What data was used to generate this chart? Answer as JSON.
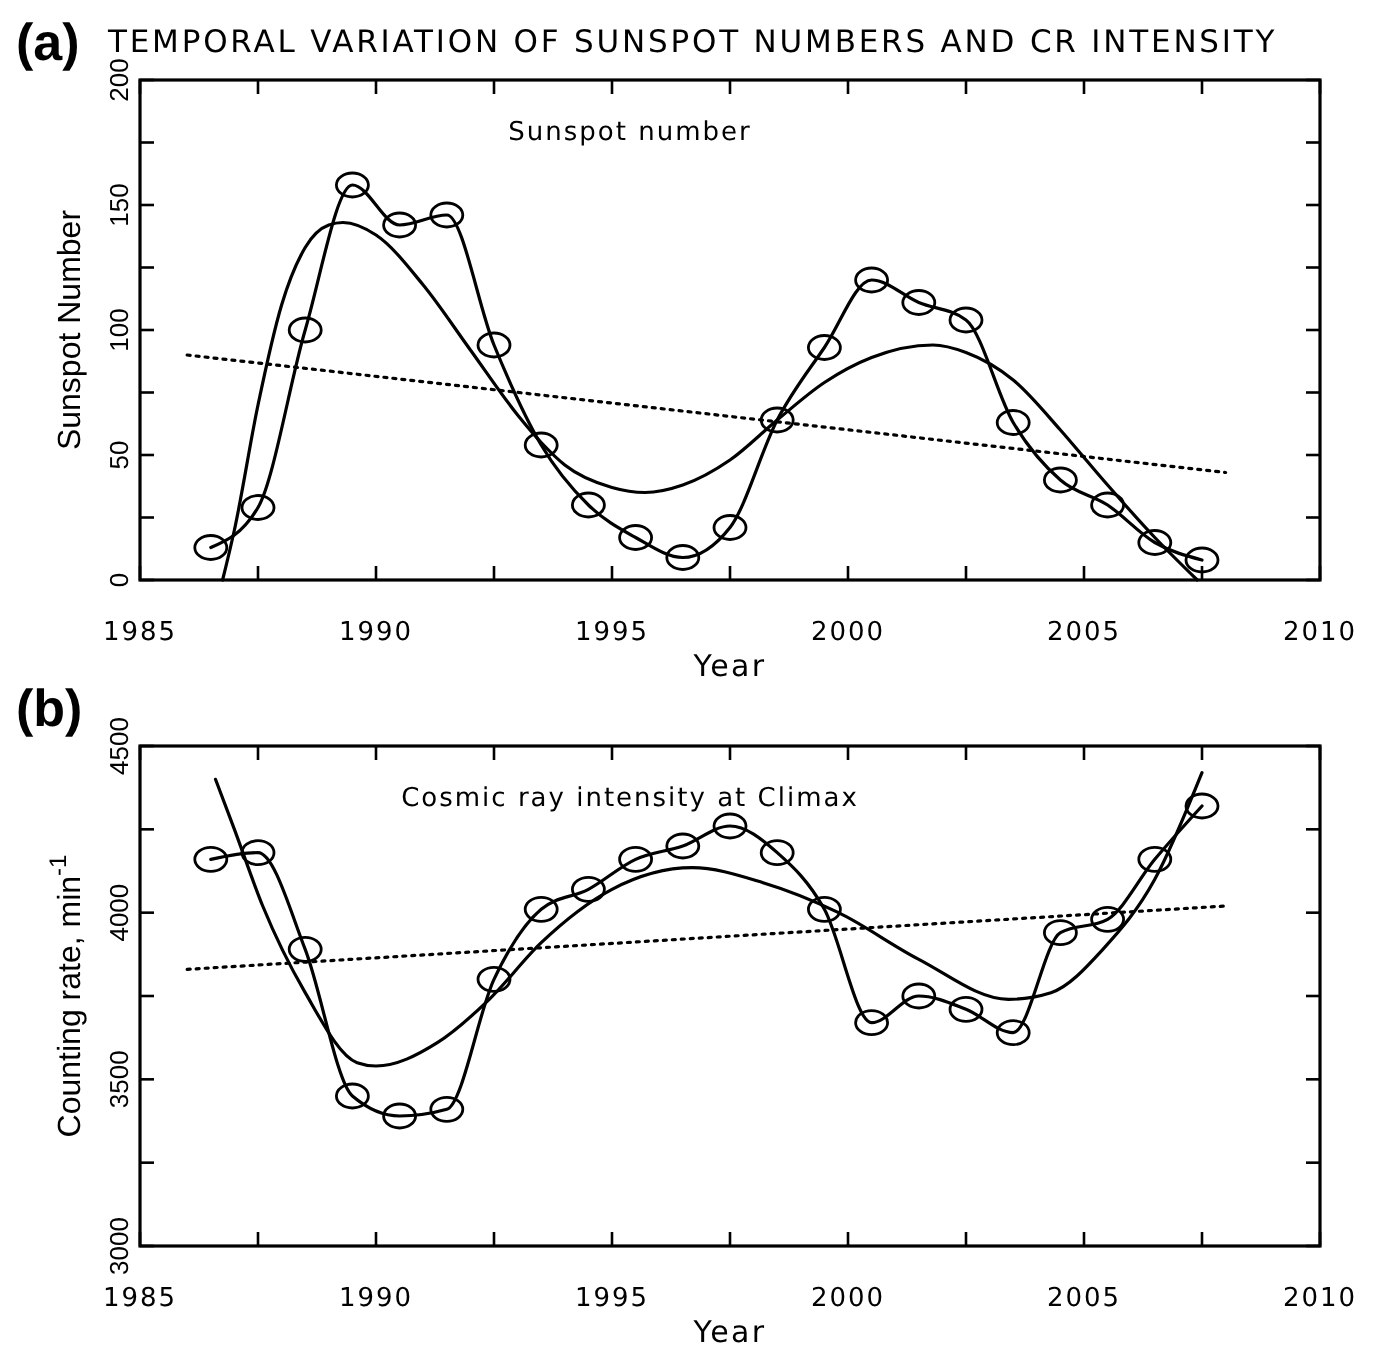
{
  "chart_data": [
    {
      "type": "line",
      "title": "(a)",
      "subtitle": "TEMPORAL VARIATION OF SUNSPOT NUMBERS AND CR INTENSITY",
      "xlabel": "Year",
      "ylabel": "Sunspot Number",
      "annotations": [
        "Sunspot number"
      ],
      "xlim": [
        1985,
        2010
      ],
      "xticks": [
        1985,
        {
          "value": 1987.5,
          "label": null
        },
        1990,
        {
          "value": 1992.5,
          "label": null
        },
        1995,
        {
          "value": 1997.5,
          "label": null
        },
        2000,
        {
          "value": 2002.5,
          "label": null
        },
        2005,
        {
          "value": 2007.5,
          "label": null
        },
        2010
      ],
      "ylim": [
        0,
        200
      ],
      "yticks": [
        0,
        {
          "value": 25,
          "label": null
        },
        50,
        {
          "value": 75,
          "label": null
        },
        100,
        {
          "value": 125,
          "label": null
        },
        150,
        {
          "value": 175,
          "label": null
        },
        200
      ],
      "grid": false,
      "series": [
        {
          "color": "#000000",
          "marker": "circle",
          "line_style": "solid",
          "x": [
            1986.5,
            1987.5,
            1988.5,
            1989.5,
            1990.5,
            1991.5,
            1992.5,
            1993.5,
            1994.5,
            1995.5,
            1996.5,
            1997.5,
            1998.5,
            1999.5,
            2000.5,
            2001.5,
            2002.5,
            2003.5,
            2004.5,
            2005.5,
            2006.5,
            2007.5
          ],
          "values": [
            13,
            29,
            100,
            158,
            142,
            146,
            94,
            54,
            30,
            17,
            9,
            21,
            64,
            93,
            120,
            111,
            104,
            63,
            40,
            30,
            15,
            8
          ]
        },
        {
          "color": "#000000",
          "marker": "none",
          "line_style": "solid",
          "x": [
            1986.75,
            1987,
            1987.5,
            1988,
            1988.5,
            1989,
            1989.3,
            1990,
            1991,
            1992,
            1993,
            1993.5,
            1994,
            1995,
            1995.7,
            1996.5,
            1997.5,
            1998.5,
            1999.5,
            2000.5,
            2001.8,
            2002.5,
            2003.5,
            2004.5,
            2005,
            2005.5,
            2006.5,
            2007.4
          ],
          "values": [
            0,
            20,
            70,
            110,
            133,
            142,
            143,
            138,
            118,
            92,
            66,
            55,
            46,
            37,
            35,
            38,
            48,
            64,
            79,
            89,
            94,
            91,
            80,
            60,
            49,
            38,
            17,
            0
          ]
        },
        {
          "color": "#000000",
          "marker": "none",
          "line_style": "dotted",
          "x": [
            1986,
            2008
          ],
          "values": [
            90,
            43
          ]
        }
      ]
    },
    {
      "type": "line",
      "title": "(b)",
      "xlabel": "Year",
      "ylabel": "Counting rate, min$^{-1}$",
      "annotations": [
        "Cosmic ray intensity at Climax"
      ],
      "xlim": [
        1985,
        2010
      ],
      "xticks": [
        1985,
        {
          "value": 1987.5,
          "label": null
        },
        1990,
        {
          "value": 1992.5,
          "label": null
        },
        1995,
        {
          "value": 1997.5,
          "label": null
        },
        2000,
        {
          "value": 2002.5,
          "label": null
        },
        2005,
        {
          "value": 2007.5,
          "label": null
        },
        2010
      ],
      "ylim": [
        3000,
        4500
      ],
      "yticks": [
        3000,
        {
          "value": 3250,
          "label": null
        },
        3500,
        {
          "value": 3750,
          "label": null
        },
        4000,
        {
          "value": 4250,
          "label": null
        },
        4500
      ],
      "grid": false,
      "series": [
        {
          "color": "#000000",
          "marker": "circle",
          "line_style": "solid",
          "x": [
            1986.5,
            1987.5,
            1988.5,
            1989.5,
            1990.5,
            1991.5,
            1992.5,
            1993.5,
            1994.5,
            1995.5,
            1996.5,
            1997.5,
            1998.5,
            1999.5,
            2000.5,
            2001.5,
            2002.5,
            2003.5,
            2004.5,
            2005.5,
            2006.5,
            2007.5
          ],
          "values": [
            4160,
            4180,
            3890,
            3450,
            3390,
            3410,
            3800,
            4010,
            4070,
            4160,
            4200,
            4260,
            4180,
            4010,
            3670,
            3750,
            3710,
            3640,
            3940,
            3980,
            4160,
            4320
          ]
        },
        {
          "color": "#000000",
          "marker": "none",
          "line_style": "solid",
          "x": [
            1986.6,
            1987,
            1987.6,
            1988.5,
            1989.6,
            1990,
            1991.3,
            1992.4,
            1993.5,
            1995,
            1996.7,
            1998.2,
            1999.8,
            2001.5,
            2003.4,
            2004.3,
            2005.4,
            2006.5,
            2007.5
          ],
          "values": [
            4400,
            4250,
            4020,
            3760,
            3550,
            3540,
            3610,
            3740,
            3910,
            4070,
            4135,
            4090,
            4000,
            3860,
            3740,
            3760,
            3890,
            4100,
            4420
          ]
        },
        {
          "color": "#000000",
          "marker": "none",
          "line_style": "dotted",
          "x": [
            1986,
            2008
          ],
          "values": [
            3830,
            4020
          ]
        }
      ]
    }
  ]
}
